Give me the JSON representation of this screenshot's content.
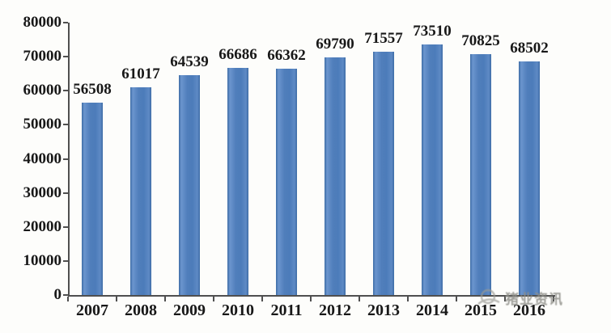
{
  "chart_data": {
    "type": "bar",
    "title": "",
    "xlabel": "",
    "ylabel": "",
    "categories": [
      "2007",
      "2008",
      "2009",
      "2010",
      "2011",
      "2012",
      "2013",
      "2014",
      "2015",
      "2016"
    ],
    "values": [
      56508,
      61017,
      64539,
      66686,
      66362,
      69790,
      71557,
      73510,
      70825,
      68502
    ],
    "data_labels": [
      "56508",
      "61017",
      "64539",
      "66686",
      "66362",
      "69790",
      "71557",
      "73510",
      "70825",
      "68502"
    ],
    "ylim": [
      0,
      80000
    ],
    "ytick_interval": 10000,
    "ytick_labels": [
      "0",
      "10000",
      "20000",
      "30000",
      "40000",
      "50000",
      "60000",
      "70000",
      "80000"
    ],
    "grid": "off",
    "legend": "none",
    "bar_color": "#4f81bd",
    "axis_color": "#4f4f4f",
    "label_color": "#181818"
  },
  "watermark": {
    "text": "猪业资讯",
    "color": "#8f8f89",
    "icon": "swirl-logo-icon"
  }
}
